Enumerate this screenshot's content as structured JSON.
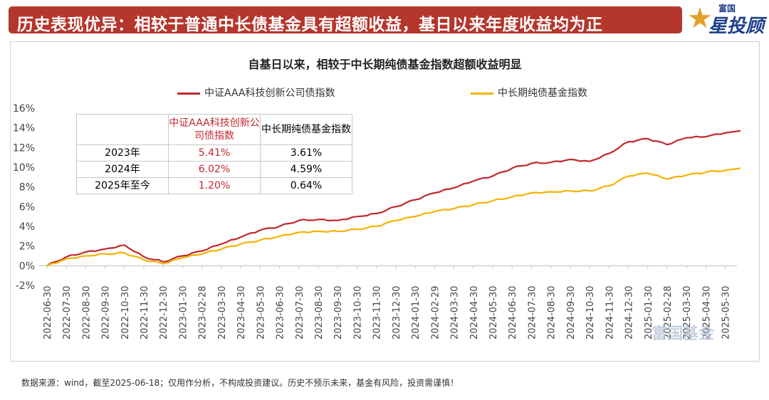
{
  "header": {
    "title": "历史表现优异：相较于普通中长债基金具有超额收益，基日以来年度收益均为正"
  },
  "logo": {
    "top_text": "富国",
    "main_text": "星投顾"
  },
  "chart_data": {
    "type": "line",
    "title": "自基日以来，相较于中长期纯债基金指数超额收益明显",
    "ylim": [
      -2,
      16
    ],
    "yticks": [
      "16%",
      "14%",
      "12%",
      "10%",
      "8%",
      "6%",
      "4%",
      "2%",
      "0%",
      "-2%"
    ],
    "ytick_values": [
      16,
      14,
      12,
      10,
      8,
      6,
      4,
      2,
      0,
      -2
    ],
    "categories": [
      "2022-06-30",
      "2022-07-30",
      "2022-08-30",
      "2022-09-30",
      "2022-10-30",
      "2022-11-30",
      "2022-12-30",
      "2023-01-30",
      "2023-02-28",
      "2023-03-30",
      "2023-04-30",
      "2023-05-30",
      "2023-06-30",
      "2023-07-30",
      "2023-08-30",
      "2023-09-30",
      "2023-10-30",
      "2023-11-30",
      "2023-12-30",
      "2024-01-30",
      "2024-02-29",
      "2024-03-30",
      "2024-04-30",
      "2024-05-30",
      "2024-06-30",
      "2024-07-30",
      "2024-08-30",
      "2024-09-30",
      "2024-10-30",
      "2024-11-30",
      "2024-12-30",
      "2025-01-30",
      "2025-02-28",
      "2025-03-30",
      "2025-04-30",
      "2025-05-30"
    ],
    "grid": false,
    "legend": "top",
    "series": [
      {
        "name": "中证AAA科技创新公司债指数",
        "color": "#c0282d",
        "values": [
          0.0,
          0.9,
          1.4,
          1.7,
          2.1,
          0.9,
          0.4,
          1.0,
          1.5,
          2.2,
          2.9,
          3.6,
          4.0,
          4.6,
          4.7,
          4.6,
          5.0,
          5.3,
          6.0,
          6.7,
          7.4,
          7.9,
          8.6,
          9.1,
          9.9,
          10.4,
          10.5,
          10.8,
          10.6,
          11.4,
          12.6,
          12.9,
          12.3,
          13.0,
          13.1,
          13.5
        ]
      },
      {
        "name": "中长期纯债基金指数",
        "color": "#f4b200",
        "values": [
          0.0,
          0.7,
          1.0,
          1.2,
          1.3,
          0.6,
          0.2,
          0.8,
          1.2,
          1.7,
          2.2,
          2.6,
          3.0,
          3.4,
          3.5,
          3.5,
          3.7,
          4.0,
          4.6,
          5.0,
          5.5,
          5.8,
          6.2,
          6.6,
          7.0,
          7.4,
          7.5,
          7.6,
          7.6,
          8.1,
          9.1,
          9.4,
          8.8,
          9.2,
          9.5,
          9.7
        ]
      }
    ],
    "table": {
      "headers": [
        "",
        "中证AAA科技创新公司债指数",
        "中长期纯债基金指数"
      ],
      "rows": [
        [
          "2023年",
          "5.41%",
          "3.61%"
        ],
        [
          "2024年",
          "6.02%",
          "4.59%"
        ],
        [
          "2025年至今",
          "1.20%",
          "0.64%"
        ]
      ]
    }
  },
  "watermark": "富国基金",
  "footnote": "数据来源：wind，截至2025-06-18；仅用作分析，不构成投资建议。历史不预示未来，基金有风险，投资需谨慎！"
}
